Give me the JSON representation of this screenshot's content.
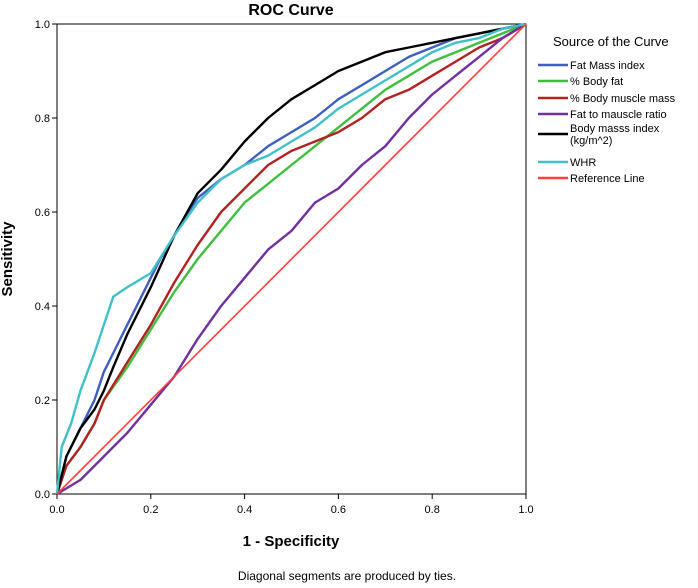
{
  "chart_data": {
    "type": "line",
    "title": "ROC Curve",
    "xlabel": "1 - Specificity",
    "ylabel": "Sensitivity",
    "xlim": [
      0,
      1
    ],
    "ylim": [
      0,
      1
    ],
    "x_ticks": [
      "0.0",
      "0.2",
      "0.4",
      "0.6",
      "0.8",
      "1.0"
    ],
    "y_ticks": [
      "0.0",
      "0.2",
      "0.4",
      "0.6",
      "0.8",
      "1.0"
    ],
    "legend_title": "Source of the Curve",
    "legend_position": "right",
    "footnote": "Diagonal segments are produced by ties.",
    "series": [
      {
        "name": "Fat Mass index",
        "color": "#3f5fbf",
        "points": [
          [
            0,
            0
          ],
          [
            0.02,
            0.08
          ],
          [
            0.05,
            0.14
          ],
          [
            0.08,
            0.2
          ],
          [
            0.1,
            0.26
          ],
          [
            0.12,
            0.3
          ],
          [
            0.15,
            0.36
          ],
          [
            0.18,
            0.42
          ],
          [
            0.2,
            0.46
          ],
          [
            0.22,
            0.5
          ],
          [
            0.25,
            0.55
          ],
          [
            0.28,
            0.6
          ],
          [
            0.3,
            0.63
          ],
          [
            0.35,
            0.67
          ],
          [
            0.4,
            0.7
          ],
          [
            0.45,
            0.74
          ],
          [
            0.5,
            0.77
          ],
          [
            0.55,
            0.8
          ],
          [
            0.6,
            0.84
          ],
          [
            0.65,
            0.87
          ],
          [
            0.7,
            0.9
          ],
          [
            0.75,
            0.93
          ],
          [
            0.8,
            0.95
          ],
          [
            0.85,
            0.97
          ],
          [
            0.9,
            0.98
          ],
          [
            0.95,
            0.99
          ],
          [
            1,
            1
          ]
        ]
      },
      {
        "name": "% Body fat",
        "color": "#3fbf3f",
        "points": [
          [
            0,
            0
          ],
          [
            0.02,
            0.06
          ],
          [
            0.05,
            0.1
          ],
          [
            0.08,
            0.15
          ],
          [
            0.1,
            0.2
          ],
          [
            0.15,
            0.27
          ],
          [
            0.2,
            0.35
          ],
          [
            0.25,
            0.43
          ],
          [
            0.3,
            0.5
          ],
          [
            0.35,
            0.56
          ],
          [
            0.4,
            0.62
          ],
          [
            0.45,
            0.66
          ],
          [
            0.5,
            0.7
          ],
          [
            0.55,
            0.74
          ],
          [
            0.6,
            0.78
          ],
          [
            0.65,
            0.82
          ],
          [
            0.7,
            0.86
          ],
          [
            0.75,
            0.89
          ],
          [
            0.8,
            0.92
          ],
          [
            0.85,
            0.94
          ],
          [
            0.9,
            0.96
          ],
          [
            0.95,
            0.98
          ],
          [
            1,
            1
          ]
        ]
      },
      {
        "name": "% Body muscle mass",
        "color": "#b22222",
        "points": [
          [
            0,
            0
          ],
          [
            0.02,
            0.06
          ],
          [
            0.05,
            0.1
          ],
          [
            0.08,
            0.15
          ],
          [
            0.1,
            0.2
          ],
          [
            0.15,
            0.28
          ],
          [
            0.2,
            0.36
          ],
          [
            0.25,
            0.45
          ],
          [
            0.3,
            0.53
          ],
          [
            0.35,
            0.6
          ],
          [
            0.4,
            0.65
          ],
          [
            0.45,
            0.7
          ],
          [
            0.5,
            0.73
          ],
          [
            0.55,
            0.75
          ],
          [
            0.6,
            0.77
          ],
          [
            0.65,
            0.8
          ],
          [
            0.7,
            0.84
          ],
          [
            0.75,
            0.86
          ],
          [
            0.8,
            0.89
          ],
          [
            0.85,
            0.92
          ],
          [
            0.9,
            0.95
          ],
          [
            0.95,
            0.97
          ],
          [
            1,
            1
          ]
        ]
      },
      {
        "name": "Fat to mauscle ratio",
        "color": "#7030a0",
        "points": [
          [
            0,
            0
          ],
          [
            0.05,
            0.03
          ],
          [
            0.1,
            0.08
          ],
          [
            0.15,
            0.13
          ],
          [
            0.2,
            0.19
          ],
          [
            0.25,
            0.25
          ],
          [
            0.3,
            0.33
          ],
          [
            0.35,
            0.4
          ],
          [
            0.4,
            0.46
          ],
          [
            0.45,
            0.52
          ],
          [
            0.5,
            0.56
          ],
          [
            0.55,
            0.62
          ],
          [
            0.6,
            0.65
          ],
          [
            0.65,
            0.7
          ],
          [
            0.7,
            0.74
          ],
          [
            0.75,
            0.8
          ],
          [
            0.8,
            0.85
          ],
          [
            0.85,
            0.89
          ],
          [
            0.9,
            0.93
          ],
          [
            0.95,
            0.97
          ],
          [
            1,
            1
          ]
        ]
      },
      {
        "name": "Body masss index (kg/m^2)",
        "color": "#000000",
        "points": [
          [
            0,
            0
          ],
          [
            0.02,
            0.08
          ],
          [
            0.05,
            0.14
          ],
          [
            0.08,
            0.18
          ],
          [
            0.1,
            0.22
          ],
          [
            0.12,
            0.27
          ],
          [
            0.15,
            0.34
          ],
          [
            0.2,
            0.44
          ],
          [
            0.25,
            0.55
          ],
          [
            0.3,
            0.64
          ],
          [
            0.35,
            0.69
          ],
          [
            0.4,
            0.75
          ],
          [
            0.45,
            0.8
          ],
          [
            0.5,
            0.84
          ],
          [
            0.55,
            0.87
          ],
          [
            0.6,
            0.9
          ],
          [
            0.65,
            0.92
          ],
          [
            0.7,
            0.94
          ],
          [
            0.75,
            0.95
          ],
          [
            0.8,
            0.96
          ],
          [
            0.85,
            0.97
          ],
          [
            0.9,
            0.98
          ],
          [
            0.95,
            0.99
          ],
          [
            1,
            1
          ]
        ]
      },
      {
        "name": "WHR",
        "color": "#40c0c8",
        "points": [
          [
            0,
            0
          ],
          [
            0.01,
            0.1
          ],
          [
            0.03,
            0.15
          ],
          [
            0.05,
            0.22
          ],
          [
            0.08,
            0.3
          ],
          [
            0.1,
            0.36
          ],
          [
            0.12,
            0.42
          ],
          [
            0.15,
            0.44
          ],
          [
            0.2,
            0.47
          ],
          [
            0.25,
            0.55
          ],
          [
            0.3,
            0.62
          ],
          [
            0.35,
            0.67
          ],
          [
            0.4,
            0.7
          ],
          [
            0.45,
            0.72
          ],
          [
            0.5,
            0.75
          ],
          [
            0.55,
            0.78
          ],
          [
            0.6,
            0.82
          ],
          [
            0.65,
            0.85
          ],
          [
            0.7,
            0.88
          ],
          [
            0.75,
            0.91
          ],
          [
            0.8,
            0.94
          ],
          [
            0.85,
            0.96
          ],
          [
            0.9,
            0.97
          ],
          [
            0.95,
            0.99
          ],
          [
            1,
            1
          ]
        ]
      },
      {
        "name": "Reference Line",
        "color": "#ff4040",
        "points": [
          [
            0,
            0
          ],
          [
            1,
            1
          ]
        ]
      }
    ]
  }
}
